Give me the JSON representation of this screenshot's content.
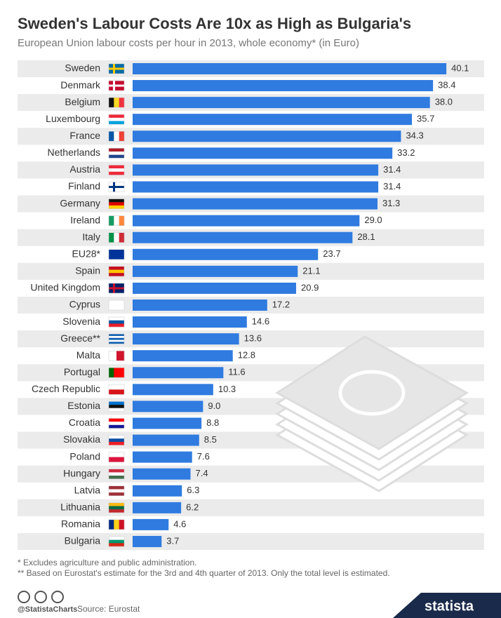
{
  "chart_data": {
    "type": "bar",
    "title": "Sweden's Labour Costs Are 10x as High as Bulgaria's",
    "subtitle": "European Union labour costs per hour in 2013, whole economy* (in Euro)",
    "categories": [
      "Sweden",
      "Denmark",
      "Belgium",
      "Luxembourg",
      "France",
      "Netherlands",
      "Austria",
      "Finland",
      "Germany",
      "Ireland",
      "Italy",
      "EU28*",
      "Spain",
      "United Kingdom",
      "Cyprus",
      "Slovenia",
      "Greece**",
      "Malta",
      "Portugal",
      "Czech Republic",
      "Estonia",
      "Croatia",
      "Slovakia",
      "Poland",
      "Hungary",
      "Latvia",
      "Lithuania",
      "Romania",
      "Bulgaria"
    ],
    "values": [
      40.1,
      38.4,
      38,
      35.7,
      34.3,
      33.2,
      31.4,
      31.4,
      31.3,
      29,
      28.1,
      23.7,
      21.1,
      20.9,
      17.2,
      14.6,
      13.6,
      12.8,
      11.6,
      10.3,
      9,
      8.8,
      8.5,
      7.6,
      7.4,
      6.3,
      6.2,
      4.6,
      3.7
    ],
    "value_labels": [
      "40.1",
      "38.4",
      "38.0",
      "35.7",
      "34.3",
      "33.2",
      "31.4",
      "31.4",
      "31.3",
      "29.0",
      "28.1",
      "23.7",
      "21.1",
      "20.9",
      "17.2",
      "14.6",
      "13.6",
      "12.8",
      "11.6",
      "10.3",
      "9.0",
      "8.8",
      "8.5",
      "7.6",
      "7.4",
      "6.3",
      "6.2",
      "4.6",
      "3.7"
    ],
    "color": "#2f7be0",
    "footnotes": [
      "* Excludes agriculture and public administration.",
      "** Based on Eurostat's estimate for the 3rd and 4th quarter of 2013. Only the total level is estimated."
    ],
    "credit": "@StatistaCharts",
    "source": "Source: Eurostat",
    "brand": "statista"
  }
}
